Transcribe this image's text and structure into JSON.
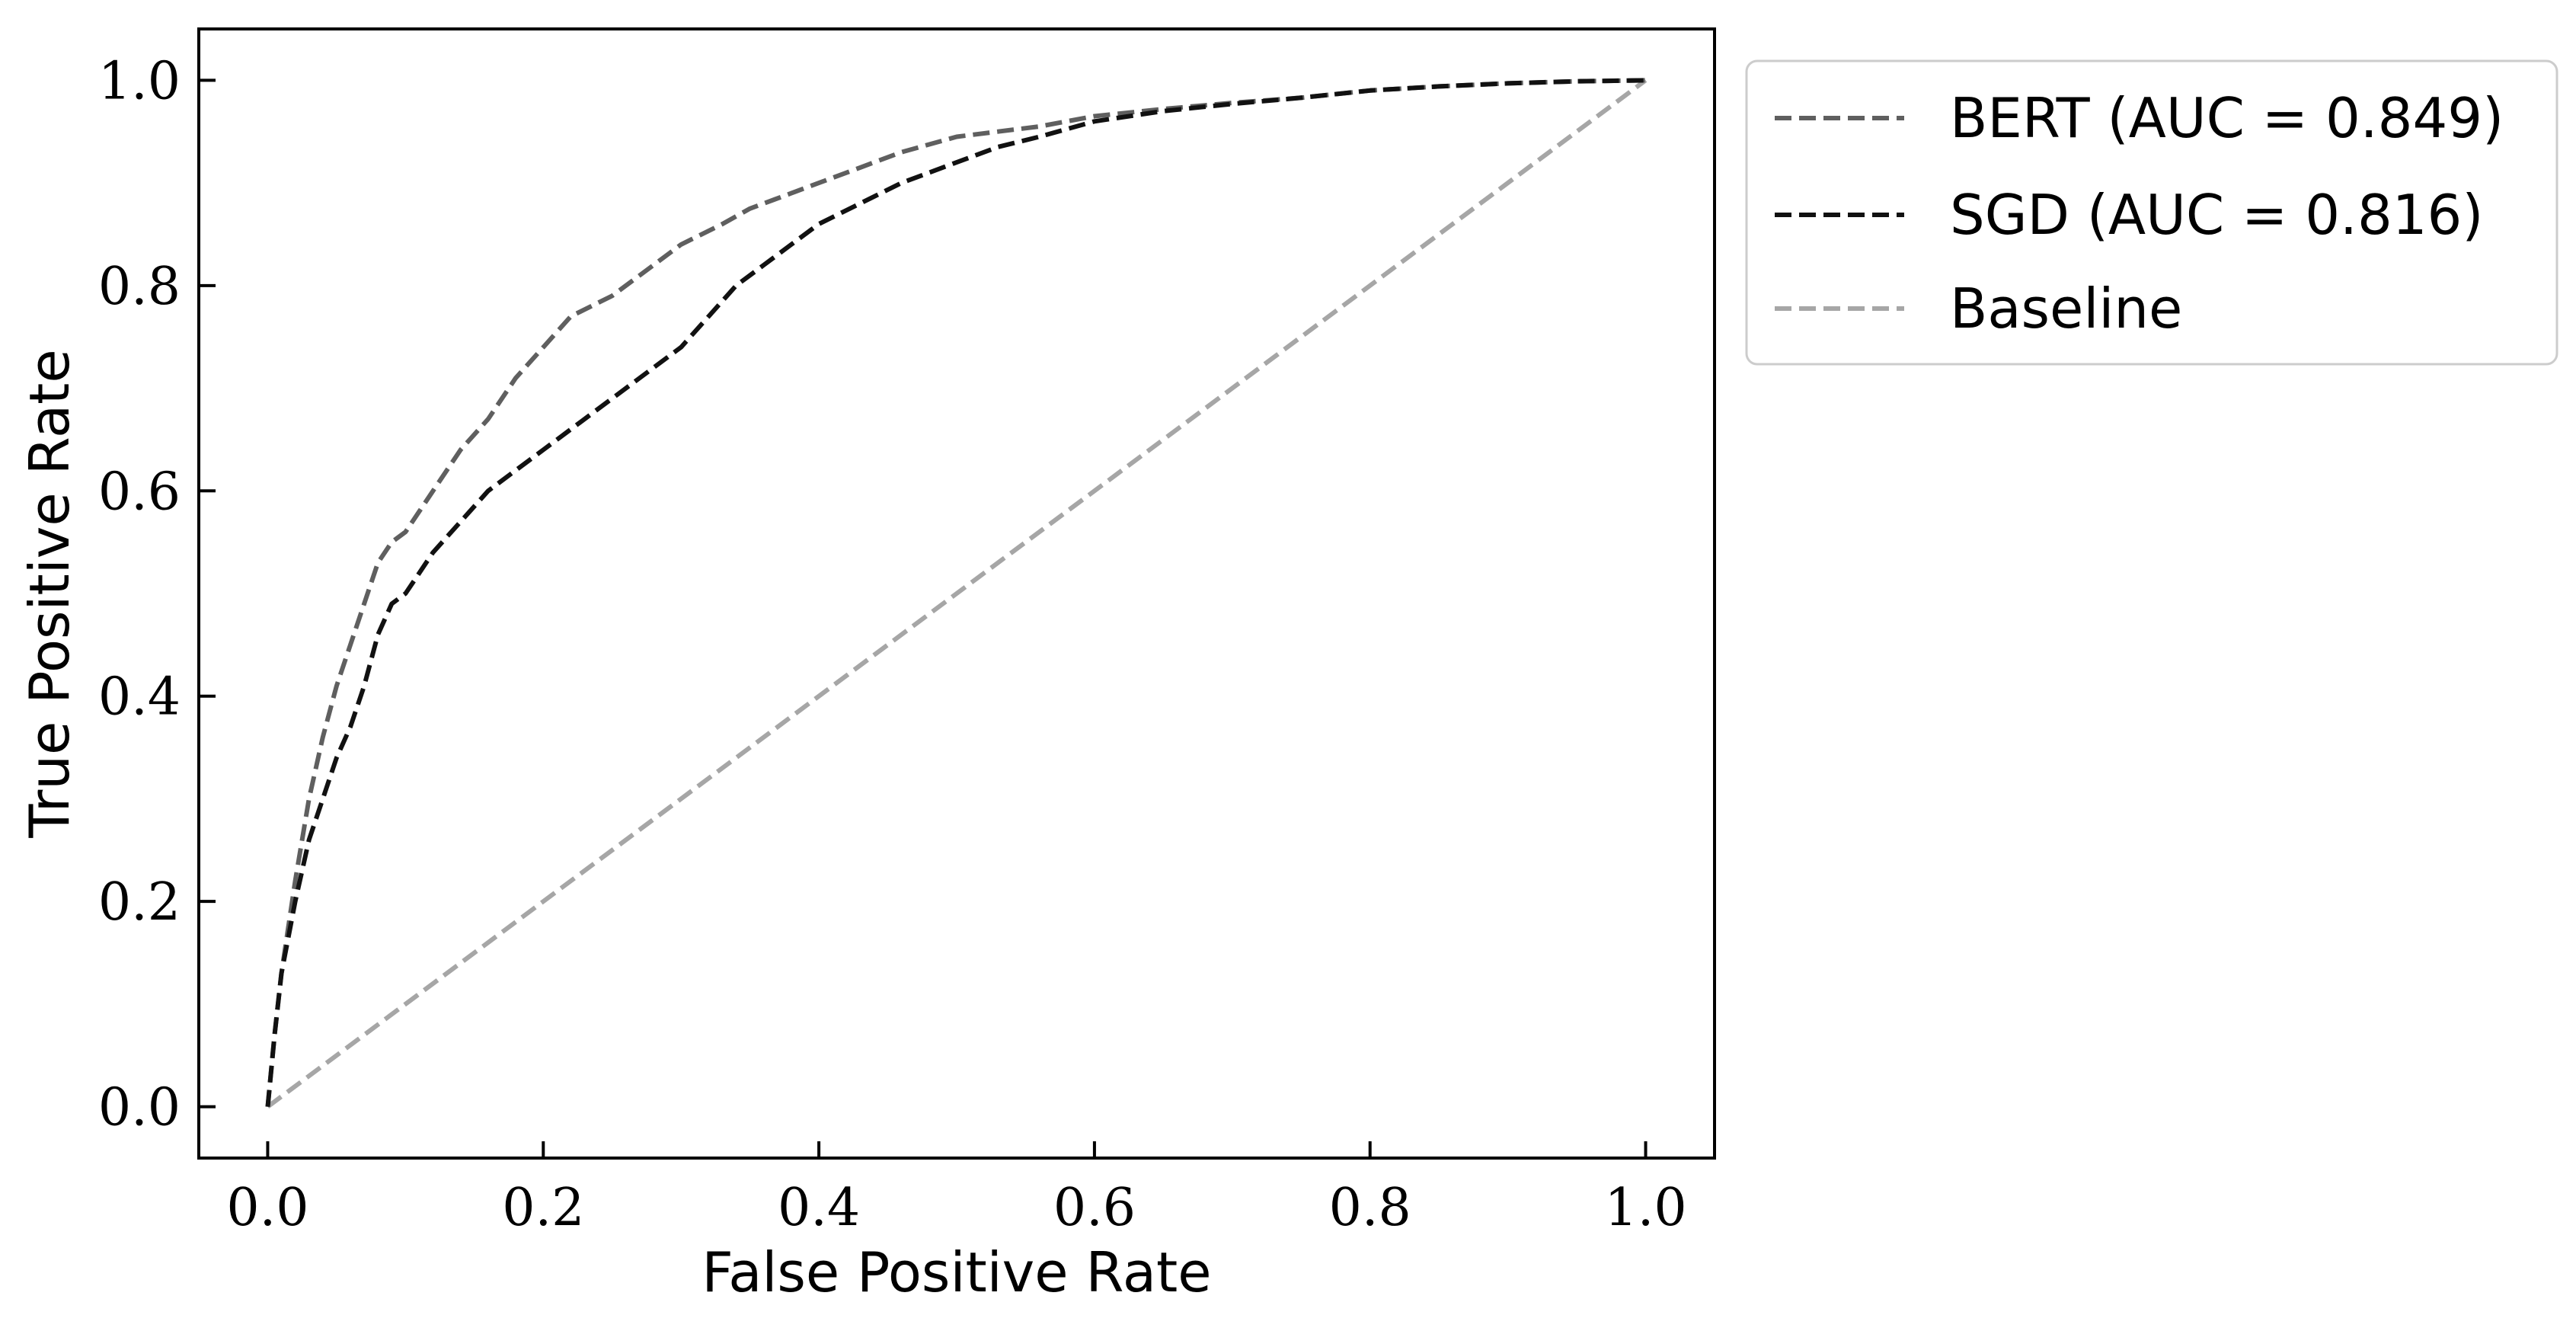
{
  "chart_data": {
    "type": "line",
    "xlabel": "False Positive Rate",
    "ylabel": "True Positive Rate",
    "xlim": [
      -0.05,
      1.05
    ],
    "ylim": [
      -0.05,
      1.05
    ],
    "xticks": [
      "0.0",
      "0.2",
      "0.4",
      "0.6",
      "0.8",
      "1.0"
    ],
    "yticks": [
      "0.0",
      "0.2",
      "0.4",
      "0.6",
      "0.8",
      "1.0"
    ],
    "grid": false,
    "legend_position": "outside-top-right",
    "series": [
      {
        "name": "BERT (AUC = 0.849)",
        "color": "#5f5f5f",
        "dash": "dashed",
        "x": [
          0.0,
          0.005,
          0.01,
          0.02,
          0.03,
          0.04,
          0.05,
          0.06,
          0.07,
          0.08,
          0.09,
          0.1,
          0.11,
          0.12,
          0.14,
          0.16,
          0.18,
          0.2,
          0.22,
          0.25,
          0.28,
          0.3,
          0.33,
          0.35,
          0.38,
          0.4,
          0.43,
          0.46,
          0.5,
          0.53,
          0.56,
          0.6,
          0.65,
          0.7,
          0.75,
          0.8,
          0.85,
          0.9,
          0.95,
          1.0
        ],
        "y": [
          0.0,
          0.07,
          0.13,
          0.22,
          0.3,
          0.36,
          0.41,
          0.45,
          0.49,
          0.53,
          0.55,
          0.56,
          0.58,
          0.6,
          0.64,
          0.67,
          0.71,
          0.74,
          0.77,
          0.79,
          0.82,
          0.84,
          0.86,
          0.875,
          0.89,
          0.9,
          0.915,
          0.93,
          0.945,
          0.95,
          0.955,
          0.965,
          0.972,
          0.978,
          0.983,
          0.99,
          0.994,
          0.997,
          0.999,
          1.0
        ]
      },
      {
        "name": "SGD (AUC = 0.816)",
        "color": "#111111",
        "dash": "dashed",
        "x": [
          0.0,
          0.005,
          0.01,
          0.02,
          0.03,
          0.04,
          0.05,
          0.06,
          0.07,
          0.08,
          0.09,
          0.1,
          0.11,
          0.12,
          0.14,
          0.16,
          0.18,
          0.2,
          0.22,
          0.25,
          0.28,
          0.3,
          0.32,
          0.34,
          0.36,
          0.38,
          0.4,
          0.43,
          0.46,
          0.5,
          0.53,
          0.56,
          0.6,
          0.65,
          0.7,
          0.75,
          0.8,
          0.85,
          0.9,
          0.95,
          1.0
        ],
        "y": [
          0.0,
          0.07,
          0.13,
          0.2,
          0.26,
          0.3,
          0.34,
          0.37,
          0.41,
          0.46,
          0.49,
          0.5,
          0.52,
          0.54,
          0.57,
          0.6,
          0.62,
          0.64,
          0.66,
          0.69,
          0.72,
          0.74,
          0.77,
          0.8,
          0.82,
          0.84,
          0.86,
          0.88,
          0.9,
          0.92,
          0.935,
          0.945,
          0.96,
          0.97,
          0.977,
          0.983,
          0.99,
          0.994,
          0.997,
          0.999,
          1.0
        ]
      },
      {
        "name": "Baseline",
        "color": "#a6a6a6",
        "dash": "dashed",
        "x": [
          0.0,
          1.0
        ],
        "y": [
          0.0,
          1.0
        ]
      }
    ]
  }
}
